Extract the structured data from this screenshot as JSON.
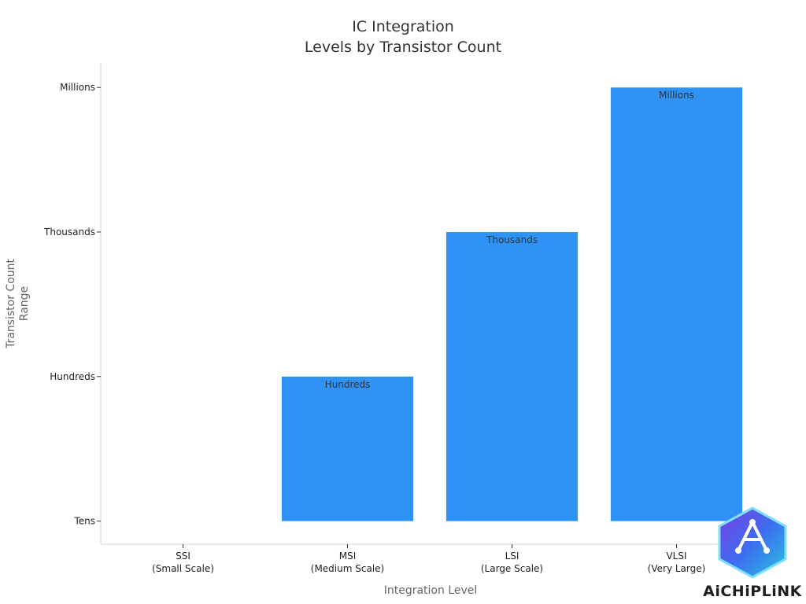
{
  "chart_data": {
    "type": "bar",
    "title": [
      "IC Integration",
      "Levels by Transistor Count"
    ],
    "xlabel": "Integration Level",
    "ylabel": [
      "Transistor Count",
      "Range"
    ],
    "categories": [
      [
        "SSI",
        "(Small Scale)"
      ],
      [
        "MSI",
        "(Medium Scale)"
      ],
      [
        "LSI",
        "(Large Scale)"
      ],
      [
        "VLSI",
        "(Very Large)"
      ]
    ],
    "y_ticks": [
      "Tens",
      "Hundreds",
      "Thousands",
      "Millions"
    ],
    "values": [
      1,
      2,
      3,
      4
    ],
    "data_labels": [
      "",
      "Hundreds",
      "Thousands",
      "Millions"
    ],
    "ylim": [
      0.84,
      4.17
    ],
    "bar_color": "#2f93f5",
    "grid": false
  },
  "logo": {
    "text": "AiCHiPLiNK"
  }
}
